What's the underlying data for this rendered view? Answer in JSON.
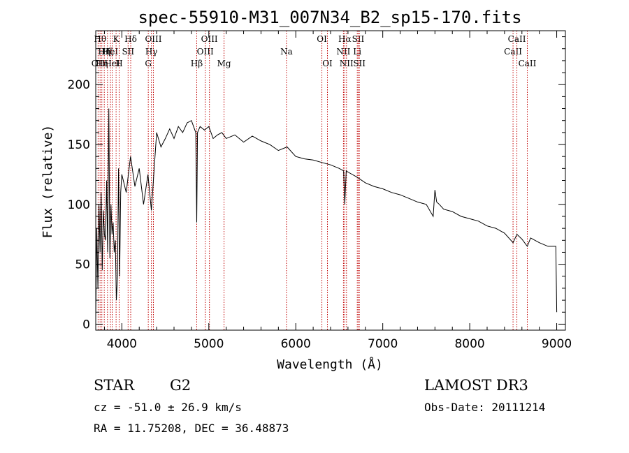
{
  "chart_data": {
    "type": "line",
    "title": "spec-55910-M31_007N34_B2_sp15-170.fits",
    "xlabel": "Wavelength (Å)",
    "ylabel": "Flux (relative)",
    "xlim": [
      3700,
      9100
    ],
    "ylim": [
      -5,
      245
    ],
    "xticks": [
      4000,
      5000,
      6000,
      7000,
      8000,
      9000
    ],
    "yticks": [
      0,
      50,
      100,
      150,
      200
    ],
    "grid": false,
    "series": [
      {
        "name": "spectrum",
        "x": [
          3700,
          3712,
          3725,
          3737,
          3750,
          3762,
          3775,
          3787,
          3800,
          3812,
          3825,
          3837,
          3850,
          3862,
          3875,
          3887,
          3900,
          3912,
          3925,
          3937,
          3950,
          3962,
          3975,
          3987,
          4000,
          4050,
          4100,
          4150,
          4200,
          4250,
          4300,
          4340,
          4400,
          4450,
          4500,
          4550,
          4600,
          4650,
          4700,
          4750,
          4800,
          4850,
          4861,
          4870,
          4900,
          4950,
          5000,
          5050,
          5100,
          5150,
          5200,
          5300,
          5400,
          5500,
          5600,
          5700,
          5800,
          5900,
          6000,
          6100,
          6200,
          6300,
          6400,
          6500,
          6550,
          6563,
          6580,
          6600,
          6700,
          6800,
          6900,
          7000,
          7100,
          7200,
          7300,
          7400,
          7500,
          7580,
          7600,
          7620,
          7650,
          7700,
          7800,
          7900,
          8000,
          8100,
          8200,
          8300,
          8400,
          8498,
          8542,
          8600,
          8662,
          8700,
          8800,
          8900,
          8990,
          9000
        ],
        "y": [
          5,
          80,
          30,
          100,
          60,
          110,
          45,
          95,
          75,
          70,
          120,
          60,
          180,
          55,
          100,
          75,
          85,
          60,
          70,
          20,
          40,
          130,
          40,
          110,
          125,
          110,
          140,
          115,
          130,
          100,
          125,
          95,
          160,
          148,
          155,
          163,
          155,
          165,
          160,
          168,
          170,
          160,
          85,
          160,
          165,
          162,
          165,
          155,
          158,
          160,
          155,
          158,
          152,
          157,
          153,
          150,
          145,
          148,
          140,
          138,
          137,
          135,
          133,
          130,
          128,
          100,
          128,
          127,
          123,
          118,
          115,
          113,
          110,
          108,
          105,
          102,
          100,
          90,
          112,
          102,
          100,
          96,
          94,
          90,
          88,
          86,
          82,
          80,
          76,
          68,
          75,
          71,
          65,
          72,
          68,
          65,
          65,
          10
        ]
      }
    ],
    "line_markers": [
      {
        "wl": 3727,
        "labels": [
          "OII"
        ],
        "row": 2
      },
      {
        "wl": 3750,
        "labels": [
          "Hθ"
        ],
        "row": 0
      },
      {
        "wl": 3770,
        "labels": [
          "Hη"
        ],
        "row": 2
      },
      {
        "wl": 3798,
        "labels": [
          "Hη"
        ],
        "row": 1
      },
      {
        "wl": 3835,
        "labels": [
          "Hζ"
        ],
        "row": 1
      },
      {
        "wl": 3869,
        "labels": [
          "HeI"
        ],
        "row": 1
      },
      {
        "wl": 3889,
        "labels": [
          "HeI"
        ],
        "row": 2
      },
      {
        "wl": 3934,
        "labels": [
          "K"
        ],
        "row": 0
      },
      {
        "wl": 3969,
        "labels": [
          "H"
        ],
        "row": 2
      },
      {
        "wl": 4072,
        "labels": [
          "SII"
        ],
        "row": 1
      },
      {
        "wl": 4102,
        "labels": [
          "Hδ"
        ],
        "row": 0
      },
      {
        "wl": 4304,
        "labels": [
          "G"
        ],
        "row": 2
      },
      {
        "wl": 4340,
        "labels": [
          "Hγ"
        ],
        "row": 1
      },
      {
        "wl": 4363,
        "labels": [
          "OIII"
        ],
        "row": 0
      },
      {
        "wl": 4861,
        "labels": [
          "Hβ"
        ],
        "row": 2
      },
      {
        "wl": 4959,
        "labels": [
          "OIII"
        ],
        "row": 1
      },
      {
        "wl": 5007,
        "labels": [
          "OIII"
        ],
        "row": 0
      },
      {
        "wl": 5175,
        "labels": [
          "Mg"
        ],
        "row": 2
      },
      {
        "wl": 5893,
        "labels": [
          "Na"
        ],
        "row": 1
      },
      {
        "wl": 6300,
        "labels": [
          "OI"
        ],
        "row": 0
      },
      {
        "wl": 6364,
        "labels": [
          "OI"
        ],
        "row": 2
      },
      {
        "wl": 6548,
        "labels": [
          "NII"
        ],
        "row": 1
      },
      {
        "wl": 6563,
        "labels": [
          "Hα"
        ],
        "row": 0
      },
      {
        "wl": 6583,
        "labels": [
          "NII"
        ],
        "row": 2
      },
      {
        "wl": 6707,
        "labels": [
          "Li"
        ],
        "row": 1
      },
      {
        "wl": 6717,
        "labels": [
          "SII"
        ],
        "row": 0
      },
      {
        "wl": 6731,
        "labels": [
          "SII"
        ],
        "row": 2
      },
      {
        "wl": 8498,
        "labels": [
          "CaII"
        ],
        "row": 1
      },
      {
        "wl": 8542,
        "labels": [
          "CaII"
        ],
        "row": 0
      },
      {
        "wl": 8662,
        "labels": [
          "CaII"
        ],
        "row": 2
      }
    ]
  },
  "info": {
    "object_class": "STAR",
    "subclass": "G2",
    "survey": "LAMOST DR3",
    "redshift": "cz = -51.0 ± 26.9 km/s",
    "obs_date": "Obs-Date: 20111214",
    "coords": "RA =  11.75208, DEC =  36.48873"
  }
}
